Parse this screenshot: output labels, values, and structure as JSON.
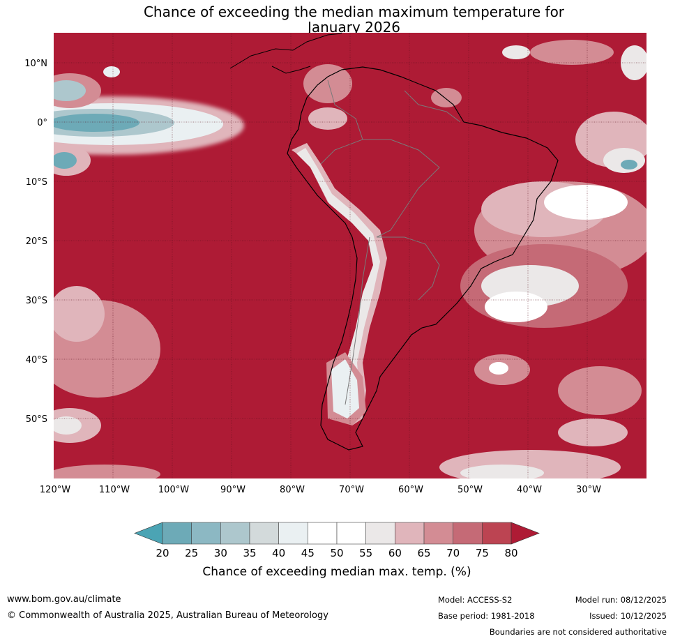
{
  "title_line1": "Chance of exceeding the median maximum temperature for",
  "title_line2": "January 2026",
  "colors": {
    "bg_red": "#ae1b35",
    "grid": "#5a0f1c",
    "coast": "#000000",
    "border": "#7a7a7a"
  },
  "lat_labels": [
    "10°N",
    "0°",
    "10°S",
    "20°S",
    "30°S",
    "40°S",
    "50°S"
  ],
  "lon_labels": [
    "120°W",
    "110°W",
    "100°W",
    "90°W",
    "80°W",
    "70°W",
    "60°W",
    "50°W",
    "40°W",
    "30°W"
  ],
  "colorbar": {
    "title": "Chance of exceeding median max. temp. (%)",
    "ticks": [
      "20",
      "25",
      "30",
      "35",
      "40",
      "45",
      "50",
      "55",
      "60",
      "65",
      "70",
      "75",
      "80"
    ],
    "colors": [
      "#4ba4b4",
      "#6daab7",
      "#8cb8c3",
      "#adc7cd",
      "#d3dadb",
      "#eaf0f2",
      "#ffffff",
      "#ffffff",
      "#ebe8e8",
      "#e0b5bb",
      "#d38c94",
      "#c56a76",
      "#bc4452",
      "#ae1b35"
    ]
  },
  "footer": {
    "url": "www.bom.gov.au/climate",
    "copyright": "© Commonwealth of Australia 2025, Australian Bureau of Meteorology",
    "model": "Model: ACCESS-S2",
    "model_run": "Model run: 08/12/2025",
    "base_period": "Base period: 1981-2018",
    "issued": "Issued: 10/12/2025",
    "disclaimer": "Boundaries are not considered authoritative"
  }
}
